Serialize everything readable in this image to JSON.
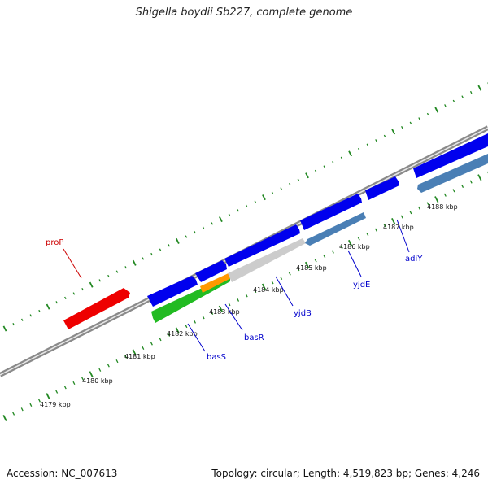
{
  "title": "Shigella boydii Sb227, complete genome",
  "footer": {
    "accession": "Accession: NC_007613",
    "stats": "Topology: circular; Length: 4,519,823 bp; Genes: 4,246"
  },
  "colors": {
    "forward_gene": "#0000ee",
    "reverse_gene": "#4a7fb5",
    "rna_gene": "#22bb22",
    "orange_gene": "#ff9900",
    "gray_gene": "#cccccc",
    "red_gene": "#ee0000",
    "backbone": "#8a8a8a",
    "tick": "#228822",
    "label_blue": "#0000cc",
    "label_red": "#cc0000"
  },
  "ticks": [
    "4179 kbp",
    "4180 kbp",
    "4181 kbp",
    "4182 kbp",
    "4183 kbp",
    "4184 kbp",
    "4185 kbp",
    "4186 kbp",
    "4187 kbp",
    "4188 kbp"
  ],
  "genes": [
    {
      "label": "proP",
      "color": "red_gene"
    },
    {
      "label": "basS",
      "color": "rna_gene"
    },
    {
      "label": "basR",
      "color": "orange_gene"
    },
    {
      "label": "yjdB",
      "color": "gray_gene"
    },
    {
      "label": "yjdE",
      "color": "reverse_gene"
    },
    {
      "label": "adiY",
      "color": "reverse_gene"
    }
  ]
}
